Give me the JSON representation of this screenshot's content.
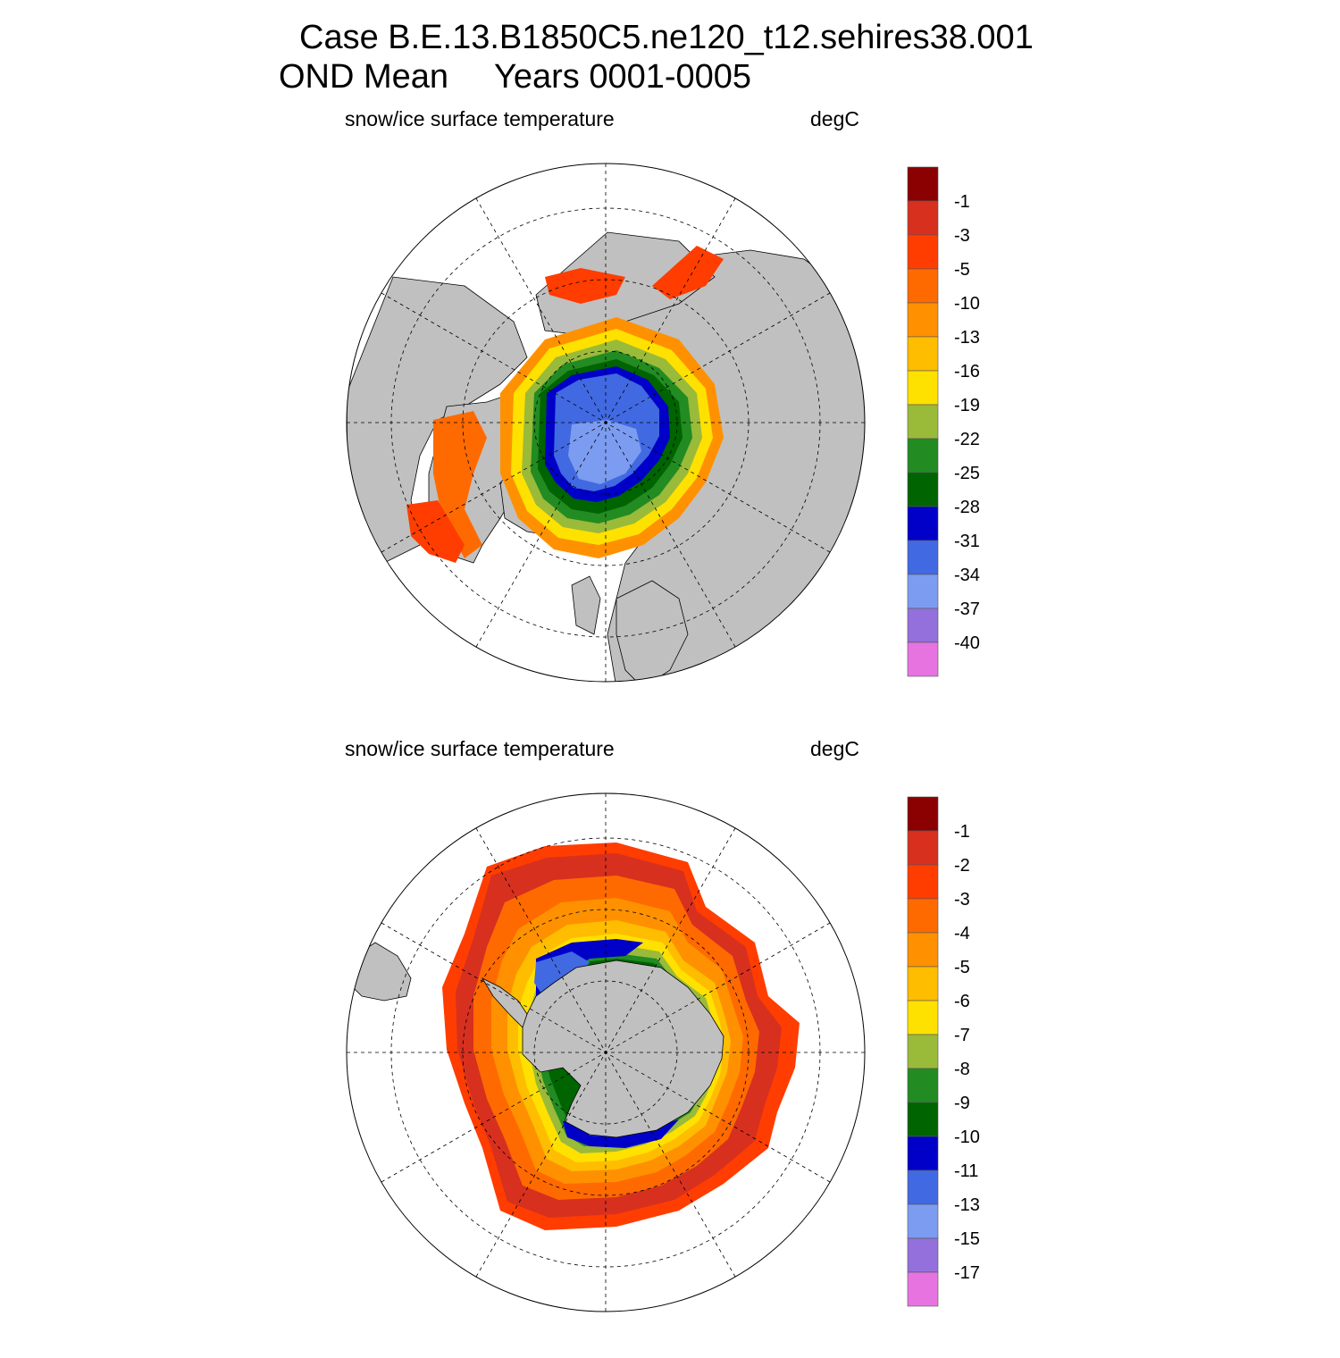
{
  "header": {
    "title_line1": "Case B.E.13.B1850C5.ne120_t12.sehires38.001",
    "title_line2_season": "OND Mean",
    "title_line2_years": "Years 0001-0005"
  },
  "maps": [
    {
      "id": "north",
      "hemisphere": "Arctic (north polar stereographic)",
      "field_label": "snow/ice surface temperature",
      "units_label": "degC",
      "colorbar_levels": [
        "-1",
        "-3",
        "-5",
        "-10",
        "-13",
        "-16",
        "-19",
        "-22",
        "-25",
        "-28",
        "-31",
        "-34",
        "-37",
        "-40"
      ]
    },
    {
      "id": "south",
      "hemisphere": "Antarctic (south polar stereographic)",
      "field_label": "snow/ice surface temperature",
      "units_label": "degC",
      "colorbar_levels": [
        "-1",
        "-2",
        "-3",
        "-4",
        "-5",
        "-6",
        "-7",
        "-8",
        "-9",
        "-10",
        "-11",
        "-13",
        "-15",
        "-17"
      ]
    }
  ],
  "colors": {
    "scale": [
      "#8b0000",
      "#d7301f",
      "#ff3d00",
      "#ff6a00",
      "#ff9100",
      "#ffbd00",
      "#ffe100",
      "#9aba3a",
      "#228b22",
      "#006400",
      "#0000c8",
      "#4169e1",
      "#7b9cf0",
      "#9370db",
      "#e673e0"
    ],
    "land": "#c0c0c0",
    "ocean": "#ffffff",
    "outline": "#000000"
  }
}
